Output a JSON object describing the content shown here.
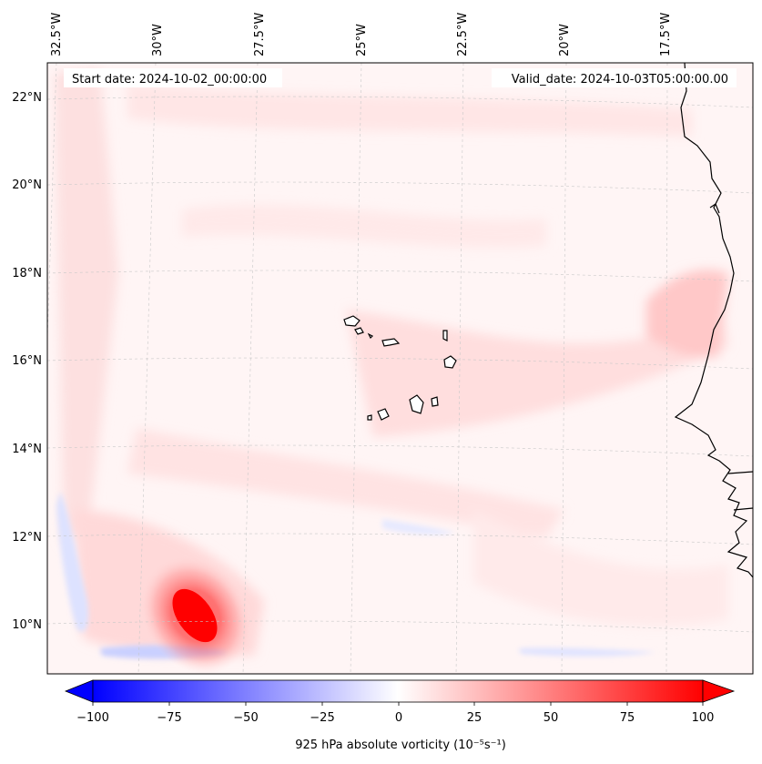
{
  "map": {
    "start_date": "Start date: 2024-10-02_00:00:00",
    "valid_date": "Valid_date: 2024-10-03T05:00:00.00",
    "lon_labels": [
      "32.5°W",
      "30°W",
      "27.5°W",
      "25°W",
      "22.5°W",
      "20°W",
      "17.5°W"
    ],
    "lat_labels": [
      "22°N",
      "20°N",
      "18°N",
      "16°N",
      "14°N",
      "12°N",
      "10°N"
    ],
    "colorbar": {
      "ticks": [
        "−100",
        "−75",
        "−50",
        "−25",
        "0",
        "25",
        "50",
        "75",
        "100"
      ],
      "label": "925 hPa absolute vorticity (10⁻⁵s⁻¹)",
      "vmin": -100,
      "vmax": 100
    },
    "colors": {
      "positive_max": "#ff0000",
      "negative_max": "#0000ff",
      "neutral": "#ffffff",
      "coast": "#000000",
      "grid": "#bbbbbb"
    }
  }
}
